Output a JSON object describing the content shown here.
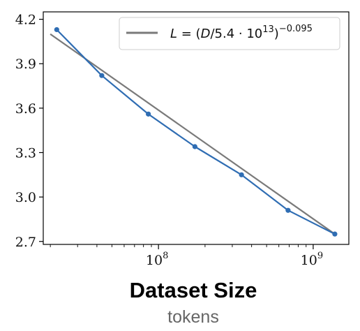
{
  "chart_data": {
    "type": "line",
    "xlabel": "Dataset Size",
    "xlabel_sub": "tokens",
    "ylabel": "",
    "x_scale": "log",
    "xlim": [
      18000000,
      1700000000
    ],
    "ylim": [
      2.68,
      4.25
    ],
    "x_ticks": [
      {
        "value": 100000000,
        "base": "10",
        "exp": "8"
      },
      {
        "value": 1000000000,
        "base": "10",
        "exp": "9"
      }
    ],
    "y_ticks": [
      {
        "value": 2.7,
        "label": "2.7"
      },
      {
        "value": 3.0,
        "label": "3.0"
      },
      {
        "value": 3.3,
        "label": "3.3"
      },
      {
        "value": 3.6,
        "label": "3.6"
      },
      {
        "value": 3.9,
        "label": "3.9"
      },
      {
        "value": 4.2,
        "label": "4.2"
      }
    ],
    "grid": false,
    "legend_position": "top-right",
    "series": [
      {
        "name": "",
        "kind": "data",
        "color": "#2f6db3",
        "x": [
          22000000,
          43000000,
          86000000,
          172000000,
          344000000,
          688000000,
          1380000000
        ],
        "y": [
          4.13,
          3.82,
          3.56,
          3.34,
          3.15,
          2.91,
          2.75
        ]
      },
      {
        "name": "L = (D/5.4 · 10^13)^-0.095",
        "kind": "fit",
        "color": "#7a7a7a",
        "x": [
          20000000,
          1380000000
        ],
        "y": [
          4.1,
          2.75
        ]
      }
    ],
    "legend": {
      "label_prefix": "L = (D/5.4 · 10",
      "label_exp1": "13",
      "label_close": ")",
      "label_exp2": "−0.095"
    }
  }
}
